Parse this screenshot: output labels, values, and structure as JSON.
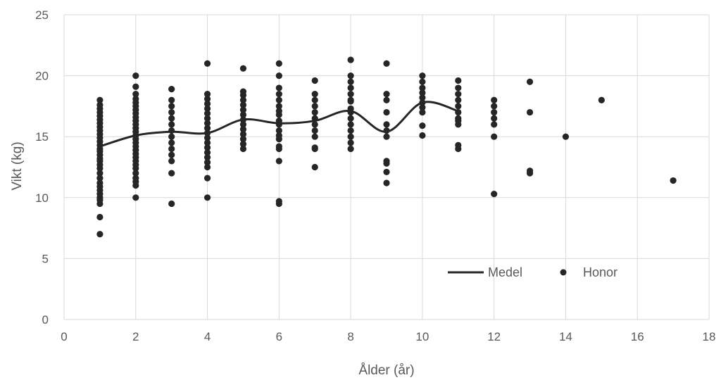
{
  "chart_data": {
    "type": "scatter",
    "xlabel": "Ålder (år)",
    "ylabel": "Vikt (kg)",
    "xlim": [
      0,
      18
    ],
    "ylim": [
      0,
      25
    ],
    "xticks": [
      "0",
      "2",
      "4",
      "6",
      "8",
      "10",
      "12",
      "14",
      "16",
      "18"
    ],
    "yticks": [
      "0",
      "5",
      "10",
      "15",
      "20",
      "25"
    ],
    "grid": true,
    "legend_position": "bottom-right inside",
    "colors": {
      "series": "#262626",
      "grid": "#d9d9d9",
      "text": "#595959"
    },
    "series": [
      {
        "name": "Medel",
        "kind": "smooth-line",
        "x": [
          1,
          2,
          3,
          4,
          5,
          6,
          7,
          8,
          9,
          10,
          11
        ],
        "y": [
          14.2,
          15.1,
          15.4,
          15.3,
          16.4,
          16.1,
          16.3,
          17.1,
          15.4,
          17.8,
          17.1
        ]
      },
      {
        "name": "Honor",
        "kind": "points",
        "points": [
          [
            1,
            7.0
          ],
          [
            1,
            8.4
          ],
          [
            1,
            9.5
          ],
          [
            1,
            9.8
          ],
          [
            1,
            10.0
          ],
          [
            1,
            10.3
          ],
          [
            1,
            10.6
          ],
          [
            1,
            10.9
          ],
          [
            1,
            11.2
          ],
          [
            1,
            11.6
          ],
          [
            1,
            12.0
          ],
          [
            1,
            12.4
          ],
          [
            1,
            12.7
          ],
          [
            1,
            13.0
          ],
          [
            1,
            13.2
          ],
          [
            1,
            13.5
          ],
          [
            1,
            13.8
          ],
          [
            1,
            14.0
          ],
          [
            1,
            14.3
          ],
          [
            1,
            14.6
          ],
          [
            1,
            14.9
          ],
          [
            1,
            15.2
          ],
          [
            1,
            15.5
          ],
          [
            1,
            15.8
          ],
          [
            1,
            16.1
          ],
          [
            1,
            16.4
          ],
          [
            1,
            16.7
          ],
          [
            1,
            17.0
          ],
          [
            1,
            17.3
          ],
          [
            1,
            17.6
          ],
          [
            1,
            18.0
          ],
          [
            2,
            10.0
          ],
          [
            2,
            11.0
          ],
          [
            2,
            11.3
          ],
          [
            2,
            11.6
          ],
          [
            2,
            12.0
          ],
          [
            2,
            12.4
          ],
          [
            2,
            12.7
          ],
          [
            2,
            13.0
          ],
          [
            2,
            13.3
          ],
          [
            2,
            13.6
          ],
          [
            2,
            13.9
          ],
          [
            2,
            14.2
          ],
          [
            2,
            14.5
          ],
          [
            2,
            14.8
          ],
          [
            2,
            15.1
          ],
          [
            2,
            15.4
          ],
          [
            2,
            15.7
          ],
          [
            2,
            16.0
          ],
          [
            2,
            16.3
          ],
          [
            2,
            16.6
          ],
          [
            2,
            16.9
          ],
          [
            2,
            17.2
          ],
          [
            2,
            17.5
          ],
          [
            2,
            17.8
          ],
          [
            2,
            18.1
          ],
          [
            2,
            18.5
          ],
          [
            2,
            19.1
          ],
          [
            2,
            20.0
          ],
          [
            3,
            9.5
          ],
          [
            3,
            12.0
          ],
          [
            3,
            13.0
          ],
          [
            3,
            13.5
          ],
          [
            3,
            14.0
          ],
          [
            3,
            14.5
          ],
          [
            3,
            15.0
          ],
          [
            3,
            15.5
          ],
          [
            3,
            16.0
          ],
          [
            3,
            16.5
          ],
          [
            3,
            17.0
          ],
          [
            3,
            17.5
          ],
          [
            3,
            18.0
          ],
          [
            3,
            18.9
          ],
          [
            4,
            10.0
          ],
          [
            4,
            11.6
          ],
          [
            4,
            12.5
          ],
          [
            4,
            12.9
          ],
          [
            4,
            13.3
          ],
          [
            4,
            13.7
          ],
          [
            4,
            14.1
          ],
          [
            4,
            14.5
          ],
          [
            4,
            14.9
          ],
          [
            4,
            15.3
          ],
          [
            4,
            15.7
          ],
          [
            4,
            16.1
          ],
          [
            4,
            16.5
          ],
          [
            4,
            16.9
          ],
          [
            4,
            17.3
          ],
          [
            4,
            17.7
          ],
          [
            4,
            18.1
          ],
          [
            4,
            18.5
          ],
          [
            4,
            21.0
          ],
          [
            5,
            14.0
          ],
          [
            5,
            14.4
          ],
          [
            5,
            14.8
          ],
          [
            5,
            15.2
          ],
          [
            5,
            15.6
          ],
          [
            5,
            16.0
          ],
          [
            5,
            16.4
          ],
          [
            5,
            16.8
          ],
          [
            5,
            17.2
          ],
          [
            5,
            17.6
          ],
          [
            5,
            18.0
          ],
          [
            5,
            18.4
          ],
          [
            5,
            18.7
          ],
          [
            5,
            20.6
          ],
          [
            6,
            9.5
          ],
          [
            6,
            9.7
          ],
          [
            6,
            13.0
          ],
          [
            6,
            14.0
          ],
          [
            6,
            14.2
          ],
          [
            6,
            14.8
          ],
          [
            6,
            15.1
          ],
          [
            6,
            15.5
          ],
          [
            6,
            16.0
          ],
          [
            6,
            16.3
          ],
          [
            6,
            16.8
          ],
          [
            6,
            17.1
          ],
          [
            6,
            17.5
          ],
          [
            6,
            18.0
          ],
          [
            6,
            18.5
          ],
          [
            6,
            19.0
          ],
          [
            6,
            20.0
          ],
          [
            6,
            21.0
          ],
          [
            7,
            12.5
          ],
          [
            7,
            14.0
          ],
          [
            7,
            14.1
          ],
          [
            7,
            15.0
          ],
          [
            7,
            15.5
          ],
          [
            7,
            16.0
          ],
          [
            7,
            16.5
          ],
          [
            7,
            17.0
          ],
          [
            7,
            17.5
          ],
          [
            7,
            18.0
          ],
          [
            7,
            18.5
          ],
          [
            7,
            19.6
          ],
          [
            8,
            14.0
          ],
          [
            8,
            14.5
          ],
          [
            8,
            15.0
          ],
          [
            8,
            15.5
          ],
          [
            8,
            16.0
          ],
          [
            8,
            16.5
          ],
          [
            8,
            17.0
          ],
          [
            8,
            17.3
          ],
          [
            8,
            17.9
          ],
          [
            8,
            18.0
          ],
          [
            8,
            18.5
          ],
          [
            8,
            19.0
          ],
          [
            8,
            19.5
          ],
          [
            8,
            20.0
          ],
          [
            8,
            21.3
          ],
          [
            9,
            11.2
          ],
          [
            9,
            12.1
          ],
          [
            9,
            12.8
          ],
          [
            9,
            13.0
          ],
          [
            9,
            15.0
          ],
          [
            9,
            15.5
          ],
          [
            9,
            16.0
          ],
          [
            9,
            17.0
          ],
          [
            9,
            18.0
          ],
          [
            9,
            18.5
          ],
          [
            9,
            21.0
          ],
          [
            10,
            15.1
          ],
          [
            10,
            15.9
          ],
          [
            10,
            17.0
          ],
          [
            10,
            17.4
          ],
          [
            10,
            17.8
          ],
          [
            10,
            18.2
          ],
          [
            10,
            18.6
          ],
          [
            10,
            19.0
          ],
          [
            10,
            19.5
          ],
          [
            10,
            20.0
          ],
          [
            11,
            14.0
          ],
          [
            11,
            14.3
          ],
          [
            11,
            16.0
          ],
          [
            11,
            16.3
          ],
          [
            11,
            16.5
          ],
          [
            11,
            17.0
          ],
          [
            11,
            17.5
          ],
          [
            11,
            18.0
          ],
          [
            11,
            18.5
          ],
          [
            11,
            19.0
          ],
          [
            11,
            19.6
          ],
          [
            12,
            10.3
          ],
          [
            12,
            15.0
          ],
          [
            12,
            16.0
          ],
          [
            12,
            16.5
          ],
          [
            12,
            17.0
          ],
          [
            12,
            17.5
          ],
          [
            12,
            18.0
          ],
          [
            13,
            12.0
          ],
          [
            13,
            12.2
          ],
          [
            13,
            17.0
          ],
          [
            13,
            19.5
          ],
          [
            14,
            15.0
          ],
          [
            15,
            18.0
          ],
          [
            17,
            11.4
          ]
        ]
      }
    ]
  }
}
